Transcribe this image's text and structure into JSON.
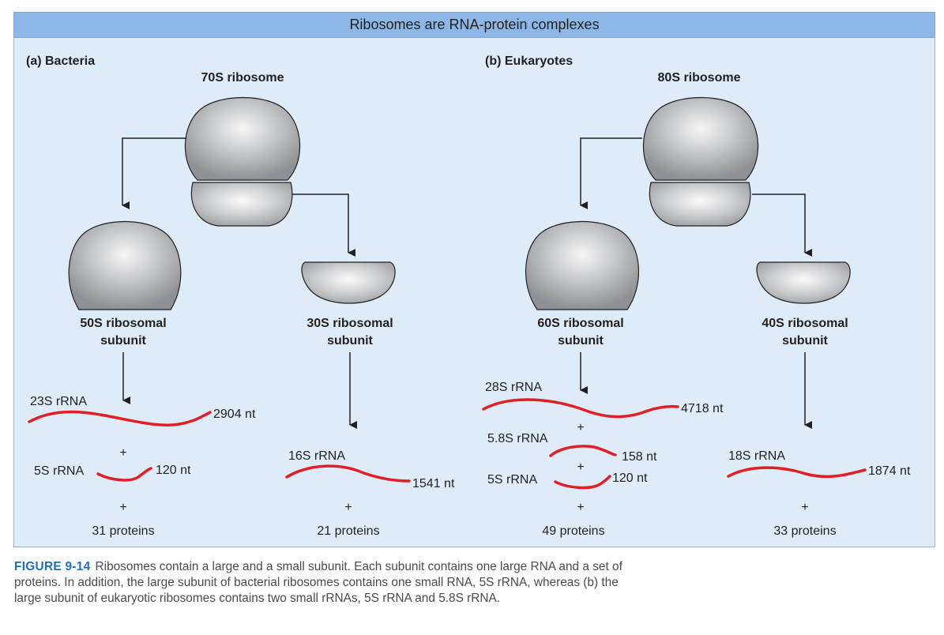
{
  "title": "Ribosomes are RNA-protein complexes",
  "colors": {
    "banner": "#8db7e6",
    "panel": "#ddecf8",
    "rna": "#e31e24",
    "figure_label": "#1f6fc0",
    "subunit": "#bdbec0"
  },
  "icons": {
    "subunit_shape": "ribosome-subunit-icon",
    "arrow": "arrow-down-icon",
    "rna": "rna-strand-icon"
  },
  "bacteria": {
    "panel_label": "(a) Bacteria",
    "ribosome": "70S ribosome",
    "large": {
      "label_line1": "50S ribosomal",
      "label_line2": "subunit",
      "rrna": [
        {
          "name": "23S rRNA",
          "length": "2904 nt"
        },
        {
          "name": "5S rRNA",
          "length": "120 nt"
        }
      ],
      "plus": "+",
      "proteins": "31 proteins"
    },
    "small": {
      "label_line1": "30S ribosomal",
      "label_line2": "subunit",
      "rrna": [
        {
          "name": "16S rRNA",
          "length": "1541 nt"
        }
      ],
      "plus": "+",
      "proteins": "21 proteins"
    }
  },
  "eukaryotes": {
    "panel_label": "(b) Eukaryotes",
    "ribosome": "80S ribosome",
    "large": {
      "label_line1": "60S ribosomal",
      "label_line2": "subunit",
      "rrna": [
        {
          "name": "28S rRNA",
          "length": "4718 nt"
        },
        {
          "name": "5.8S rRNA",
          "length": "158 nt"
        },
        {
          "name": "5S rRNA",
          "length": "120 nt"
        }
      ],
      "plus": "+",
      "proteins": "49 proteins"
    },
    "small": {
      "label_line1": "40S ribosomal",
      "label_line2": "subunit",
      "rrna": [
        {
          "name": "18S rRNA",
          "length": "1874 nt"
        }
      ],
      "plus": "+",
      "proteins": "33 proteins"
    }
  },
  "caption": {
    "figure": "FIGURE 9-14",
    "text": "Ribosomes contain a large and a small subunit. Each subunit contains one large RNA and a set of proteins. In addition, the large subunit of bacterial ribosomes contains one small RNA, 5S rRNA, whereas (b) the large subunit of eukaryotic ribosomes contains two small rRNAs, 5S rRNA and 5.8S rRNA."
  }
}
